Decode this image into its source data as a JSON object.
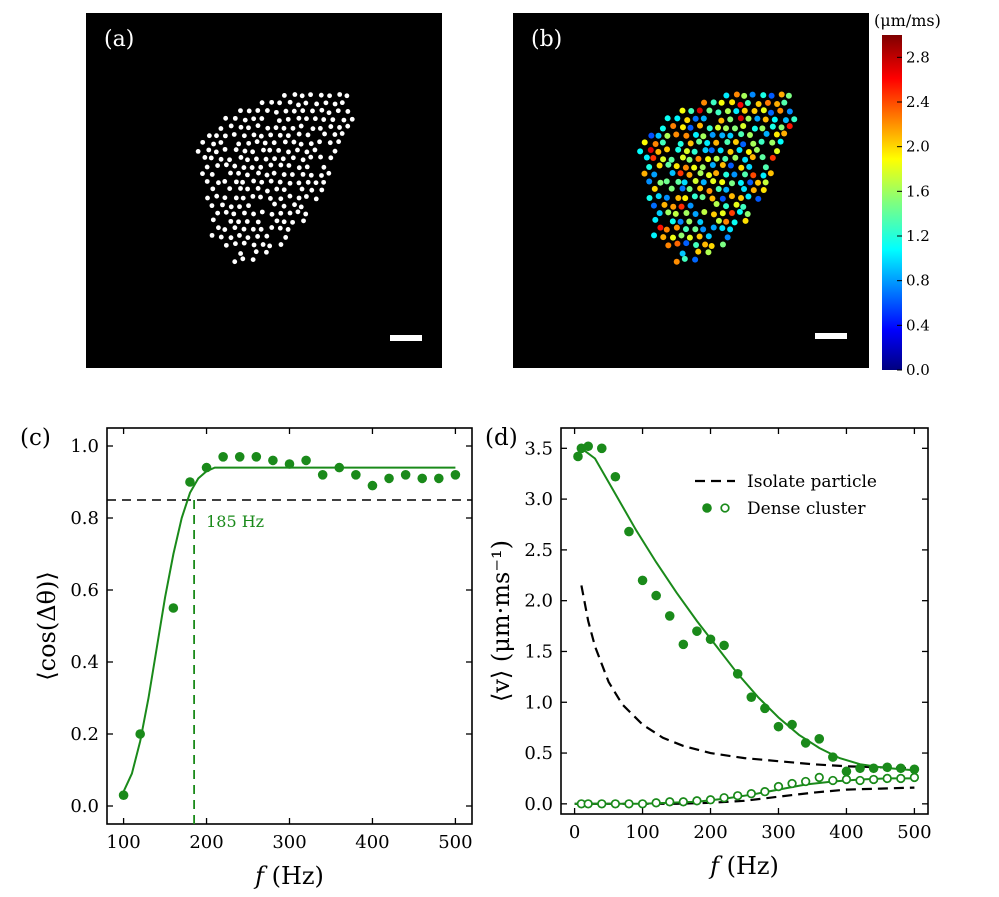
{
  "panel_a": {
    "label": "(a)"
  },
  "panel_b": {
    "label": "(b)"
  },
  "colorbar": {
    "unit_label": "(μm/ms)",
    "ticks": [
      "2.8",
      "2.4",
      "2.0",
      "1.6",
      "1.2",
      "0.8",
      "0.4",
      "0.0"
    ],
    "tick_values": [
      2.8,
      2.4,
      2.0,
      1.6,
      1.2,
      0.8,
      0.4,
      0.0
    ],
    "range": [
      0,
      3.0
    ]
  },
  "chart_data": [
    {
      "panel": "(c)",
      "type": "scatter",
      "xlabel_italic": "f",
      "xlabel_unit": "(Hz)",
      "ylabel": "⟨cos(Δθ)⟩",
      "xlim": [
        80,
        520
      ],
      "ylim": [
        -0.05,
        1.05
      ],
      "xticks": [
        100,
        200,
        300,
        400,
        500
      ],
      "yticks": [
        0.0,
        0.2,
        0.4,
        0.6,
        0.8,
        1.0
      ],
      "xtick_labels": [
        "100",
        "200",
        "300",
        "400",
        "500"
      ],
      "ytick_labels": [
        "0.0",
        "0.2",
        "0.4",
        "0.6",
        "0.8",
        "1.0"
      ],
      "points": {
        "x": [
          100,
          120,
          160,
          180,
          200,
          220,
          240,
          260,
          280,
          300,
          320,
          340,
          360,
          380,
          400,
          420,
          440,
          460,
          480,
          500
        ],
        "y": [
          0.03,
          0.2,
          0.55,
          0.9,
          0.94,
          0.97,
          0.97,
          0.97,
          0.96,
          0.95,
          0.96,
          0.92,
          0.94,
          0.92,
          0.89,
          0.91,
          0.92,
          0.91,
          0.91,
          0.92
        ]
      },
      "fit_curve": {
        "x": [
          98,
          110,
          120,
          130,
          140,
          150,
          160,
          170,
          180,
          185,
          190,
          200,
          210,
          220,
          240,
          260,
          300,
          350,
          400,
          450,
          500
        ],
        "y": [
          0.03,
          0.09,
          0.18,
          0.3,
          0.44,
          0.58,
          0.7,
          0.8,
          0.87,
          0.89,
          0.91,
          0.93,
          0.94,
          0.94,
          0.94,
          0.94,
          0.94,
          0.94,
          0.94,
          0.94,
          0.94
        ]
      },
      "threshold_y": 0.85,
      "threshold_x": 185,
      "threshold_x_label": "185 Hz",
      "color": "#1a8a1a"
    },
    {
      "panel": "(d)",
      "type": "scatter",
      "xlabel_italic": "f",
      "xlabel_unit": "(Hz)",
      "ylabel": "⟨v⟩ (μm·ms⁻¹)",
      "xlim": [
        -20,
        520
      ],
      "ylim": [
        -0.1,
        3.7
      ],
      "xticks": [
        0,
        100,
        200,
        300,
        400,
        500
      ],
      "yticks": [
        0.0,
        0.5,
        1.0,
        1.5,
        2.0,
        2.5,
        3.0,
        3.5
      ],
      "xtick_labels": [
        "0",
        "100",
        "200",
        "300",
        "400",
        "500"
      ],
      "ytick_labels": [
        "0.0",
        "0.5",
        "1.0",
        "1.5",
        "2.0",
        "2.5",
        "3.0",
        "3.5"
      ],
      "legend": {
        "position": "top-right",
        "entries": [
          "Isolate particle",
          "Dense cluster"
        ]
      },
      "series": [
        {
          "name": "Isolate particle",
          "kind": "dashed-line",
          "x": [
            10,
            20,
            30,
            50,
            70,
            100,
            130,
            160,
            200,
            250,
            300,
            350,
            400,
            450,
            500
          ],
          "y": [
            2.15,
            1.8,
            1.55,
            1.2,
            0.98,
            0.78,
            0.65,
            0.57,
            0.5,
            0.45,
            0.42,
            0.39,
            0.37,
            0.36,
            0.35
          ]
        },
        {
          "name": "Isolate particle low",
          "kind": "dashed-line",
          "x": [
            0,
            100,
            150,
            200,
            250,
            300,
            350,
            400,
            450,
            500
          ],
          "y": [
            0.0,
            0.0,
            0.0,
            0.01,
            0.03,
            0.07,
            0.11,
            0.14,
            0.15,
            0.16
          ]
        },
        {
          "name": "Dense cluster",
          "kind": "filled-points",
          "x": [
            5,
            10,
            20,
            40,
            60,
            80,
            100,
            120,
            140,
            160,
            180,
            200,
            220,
            240,
            260,
            280,
            300,
            320,
            340,
            360,
            380,
            400,
            420,
            440,
            460,
            480,
            500
          ],
          "y": [
            3.42,
            3.5,
            3.52,
            3.5,
            3.22,
            2.68,
            2.2,
            2.05,
            1.85,
            1.57,
            1.7,
            1.62,
            1.56,
            1.28,
            1.05,
            0.94,
            0.76,
            0.78,
            0.6,
            0.64,
            0.46,
            0.32,
            0.35,
            0.35,
            0.36,
            0.35,
            0.34
          ]
        },
        {
          "name": "Dense cluster fit (filled)",
          "kind": "solid-line",
          "x": [
            10,
            30,
            60,
            90,
            120,
            150,
            180,
            210,
            240,
            270,
            300,
            330,
            360,
            390,
            420,
            450,
            480,
            500
          ],
          "y": [
            3.5,
            3.4,
            3.05,
            2.7,
            2.38,
            2.08,
            1.8,
            1.54,
            1.28,
            1.05,
            0.85,
            0.68,
            0.55,
            0.45,
            0.39,
            0.36,
            0.34,
            0.33
          ]
        },
        {
          "name": "Dense cluster open",
          "kind": "open-points",
          "x": [
            10,
            20,
            40,
            60,
            80,
            100,
            120,
            140,
            160,
            180,
            200,
            220,
            240,
            260,
            280,
            300,
            320,
            340,
            360,
            380,
            400,
            420,
            440,
            460,
            480,
            500
          ],
          "y": [
            0.0,
            0.0,
            0.0,
            0.0,
            0.0,
            0.0,
            0.01,
            0.02,
            0.02,
            0.03,
            0.04,
            0.06,
            0.08,
            0.1,
            0.12,
            0.17,
            0.2,
            0.22,
            0.26,
            0.23,
            0.24,
            0.23,
            0.24,
            0.25,
            0.25,
            0.26
          ]
        },
        {
          "name": "Dense cluster fit (open)",
          "kind": "solid-line",
          "x": [
            0,
            60,
            100,
            140,
            180,
            220,
            260,
            300,
            340,
            380,
            420,
            460,
            500
          ],
          "y": [
            0.0,
            0.0,
            0.0,
            0.01,
            0.02,
            0.05,
            0.09,
            0.14,
            0.19,
            0.22,
            0.24,
            0.25,
            0.25
          ]
        }
      ],
      "color": "#1a8a1a"
    }
  ]
}
